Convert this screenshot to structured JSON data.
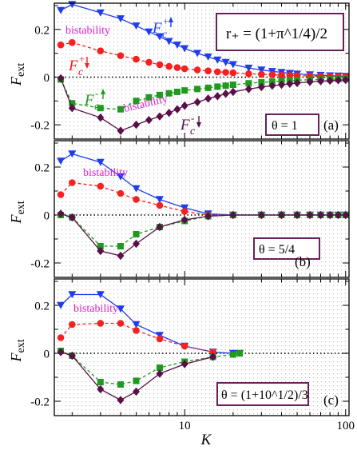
{
  "figure": {
    "colors": {
      "blue": "#1f3df0",
      "red": "#f52020",
      "green": "#1f9a1f",
      "maroon": "#5a0f4a",
      "magenta": "#e020d0",
      "annotation_box": "#6b1f5a",
      "dots": "#c8c8c8"
    },
    "xlabel": "K",
    "ylabel_main": "F",
    "ylabel_sub": "ext",
    "xtick_labels": [
      "10",
      "100"
    ]
  },
  "chart_data": [
    {
      "type": "line",
      "x_scale": "log",
      "xlim": [
        1.55,
        105
      ],
      "ylim": [
        -0.26,
        0.31
      ],
      "yticks": [
        -0.2,
        0,
        0.2
      ],
      "ytick_labels": [
        "-0.2",
        "0",
        "0.2"
      ],
      "title": "",
      "ylabel": "F_ext",
      "panel_label": "(a)",
      "condition": "θ = 1",
      "formula_box": "r₊ = (1+π^1/4)/2",
      "bistability_labels": [
        "bistability",
        "bistability"
      ],
      "series": [
        {
          "name": "F_c^{+↑}",
          "color": "#1f3df0",
          "marker": "triangle-down",
          "dash": false,
          "x": [
            1.7,
            2,
            3,
            4,
            5,
            6,
            7,
            8,
            9,
            10,
            12,
            14,
            16,
            18,
            20,
            25,
            30,
            35,
            40,
            45,
            50,
            60,
            70,
            80,
            90,
            100
          ],
          "y": [
            0.28,
            0.305,
            0.27,
            0.245,
            0.215,
            0.19,
            0.17,
            0.15,
            0.135,
            0.12,
            0.1,
            0.085,
            0.072,
            0.062,
            0.053,
            0.038,
            0.03,
            0.024,
            0.02,
            0.016,
            0.013,
            0.01,
            0.008,
            0.006,
            0.005,
            0.004
          ]
        },
        {
          "name": "F_c^{+↓}",
          "color": "#f52020",
          "marker": "circle",
          "dash": true,
          "x": [
            1.7,
            2,
            3,
            4,
            5,
            6,
            7,
            8,
            9,
            10,
            12,
            14,
            16,
            18,
            20,
            25,
            30,
            35,
            40,
            45,
            50,
            60,
            70,
            80,
            90,
            100
          ],
          "y": [
            0.135,
            0.145,
            0.11,
            0.09,
            0.075,
            0.062,
            0.052,
            0.045,
            0.04,
            0.035,
            0.03,
            0.026,
            0.022,
            0.02,
            0.018,
            0.014,
            0.012,
            0.01,
            0.008,
            0.007,
            0.006,
            0.005,
            0.004,
            0.003,
            0.002,
            0.002
          ]
        },
        {
          "name": "F_c^{-↑}",
          "color": "#1f9a1f",
          "marker": "square",
          "dash": true,
          "x": [
            1.7,
            2,
            3,
            4,
            5,
            6,
            7,
            8,
            9,
            10,
            12,
            14,
            16,
            18,
            20,
            25,
            30,
            35,
            40,
            45,
            50,
            60,
            70,
            80,
            90,
            100
          ],
          "y": [
            -0.01,
            -0.11,
            -0.13,
            -0.135,
            -0.1,
            -0.085,
            -0.075,
            -0.068,
            -0.062,
            -0.056,
            -0.05,
            -0.045,
            -0.04,
            -0.036,
            -0.032,
            -0.026,
            -0.022,
            -0.019,
            -0.016,
            -0.014,
            -0.013,
            -0.011,
            -0.01,
            -0.009,
            -0.008,
            -0.007
          ]
        },
        {
          "name": "F_c^{-↓}",
          "color": "#5a0f4a",
          "marker": "diamond",
          "dash": false,
          "x": [
            1.7,
            2,
            3,
            4,
            5,
            6,
            7,
            8,
            9,
            10,
            12,
            14,
            16,
            18,
            20,
            25,
            30,
            35,
            40,
            45,
            50,
            60,
            70,
            80,
            90,
            100
          ],
          "y": [
            -0.005,
            -0.13,
            -0.17,
            -0.225,
            -0.2,
            -0.18,
            -0.165,
            -0.15,
            -0.135,
            -0.12,
            -0.105,
            -0.09,
            -0.08,
            -0.07,
            -0.062,
            -0.05,
            -0.042,
            -0.036,
            -0.032,
            -0.028,
            -0.025,
            -0.02,
            -0.017,
            -0.015,
            -0.013,
            -0.012
          ]
        }
      ]
    },
    {
      "type": "line",
      "x_scale": "log",
      "xlim": [
        1.55,
        105
      ],
      "ylim": [
        -0.26,
        0.31
      ],
      "yticks": [
        -0.2,
        0,
        0.2
      ],
      "ytick_labels": [
        "-0.2",
        "0",
        "0.2"
      ],
      "title": "",
      "ylabel": "F_ext",
      "panel_label": "(b)",
      "condition": "θ = 5/4",
      "bistability_labels": [
        "bistability"
      ],
      "series": [
        {
          "name": "",
          "color": "#1f3df0",
          "marker": "triangle-down",
          "dash": false,
          "x": [
            1.7,
            2,
            3,
            4,
            5,
            7,
            10,
            14,
            20,
            30,
            40,
            50,
            60,
            70,
            80,
            90,
            100
          ],
          "y": [
            0.225,
            0.255,
            0.22,
            0.16,
            0.11,
            0.065,
            0.03,
            0.005,
            0.0,
            0.0,
            0.0,
            0.0,
            0.0,
            0.0,
            0.0,
            0.0,
            0.0
          ]
        },
        {
          "name": "",
          "color": "#f52020",
          "marker": "circle",
          "dash": true,
          "x": [
            1.7,
            2,
            3,
            4,
            5,
            7,
            10,
            14,
            20,
            30,
            40,
            50,
            60,
            70,
            80,
            90,
            100
          ],
          "y": [
            0.085,
            0.135,
            0.12,
            0.09,
            0.065,
            0.04,
            0.015,
            0.0,
            0.0,
            0.0,
            0.0,
            0.0,
            0.0,
            0.0,
            0.0,
            0.0,
            0.0
          ]
        },
        {
          "name": "",
          "color": "#1f9a1f",
          "marker": "square",
          "dash": true,
          "x": [
            1.7,
            2,
            3,
            4,
            5,
            7,
            10,
            14,
            20,
            30,
            40,
            50,
            60,
            70,
            80,
            90,
            100
          ],
          "y": [
            0.0,
            -0.01,
            -0.13,
            -0.13,
            -0.08,
            -0.05,
            -0.025,
            -0.005,
            0.0,
            0.0,
            0.0,
            0.0,
            0.0,
            0.0,
            0.0,
            0.0,
            0.0
          ]
        },
        {
          "name": "",
          "color": "#5a0f4a",
          "marker": "diamond",
          "dash": false,
          "x": [
            1.7,
            2,
            3,
            4,
            5,
            7,
            10,
            14,
            20,
            30,
            40,
            50,
            60,
            70,
            80,
            90,
            100
          ],
          "y": [
            0.005,
            -0.01,
            -0.15,
            -0.17,
            -0.12,
            -0.05,
            -0.02,
            -0.005,
            0.0,
            0.0,
            0.0,
            0.0,
            0.0,
            0.0,
            0.0,
            0.0,
            0.0
          ]
        }
      ]
    },
    {
      "type": "line",
      "x_scale": "log",
      "xlim": [
        1.55,
        105
      ],
      "ylim": [
        -0.26,
        0.31
      ],
      "yticks": [
        -0.2,
        0,
        0.2
      ],
      "ytick_labels": [
        "-0.2",
        "0",
        "0.2"
      ],
      "title": "",
      "ylabel": "F_ext",
      "panel_label": "(c)",
      "condition": "θ = (1+10^1/2)/3",
      "bistability_labels": [
        "bistability"
      ],
      "series": [
        {
          "name": "",
          "color": "#1f3df0",
          "marker": "triangle-down",
          "dash": false,
          "x": [
            1.7,
            2,
            3,
            4,
            5,
            7,
            10,
            15,
            20,
            22
          ],
          "y": [
            0.2,
            0.245,
            0.245,
            0.185,
            0.12,
            0.075,
            0.03,
            0.005,
            0.0,
            0.0
          ]
        },
        {
          "name": "",
          "color": "#f52020",
          "marker": "circle",
          "dash": true,
          "x": [
            1.7,
            2,
            3,
            4,
            5,
            7,
            10,
            15
          ],
          "y": [
            0.065,
            0.12,
            0.125,
            0.125,
            0.095,
            0.06,
            0.03,
            0.005
          ]
        },
        {
          "name": "",
          "color": "#1f9a1f",
          "marker": "square",
          "dash": true,
          "x": [
            1.7,
            2,
            3,
            4,
            5,
            7,
            10,
            15,
            20,
            22
          ],
          "y": [
            0.01,
            -0.01,
            -0.12,
            -0.13,
            -0.115,
            -0.06,
            -0.035,
            -0.015,
            -0.005,
            0.0
          ]
        },
        {
          "name": "",
          "color": "#5a0f4a",
          "marker": "diamond",
          "dash": false,
          "x": [
            1.7,
            2,
            3,
            4,
            5,
            7,
            10,
            15
          ],
          "y": [
            0.005,
            -0.01,
            -0.15,
            -0.195,
            -0.16,
            -0.085,
            -0.045,
            -0.015
          ]
        }
      ]
    }
  ]
}
